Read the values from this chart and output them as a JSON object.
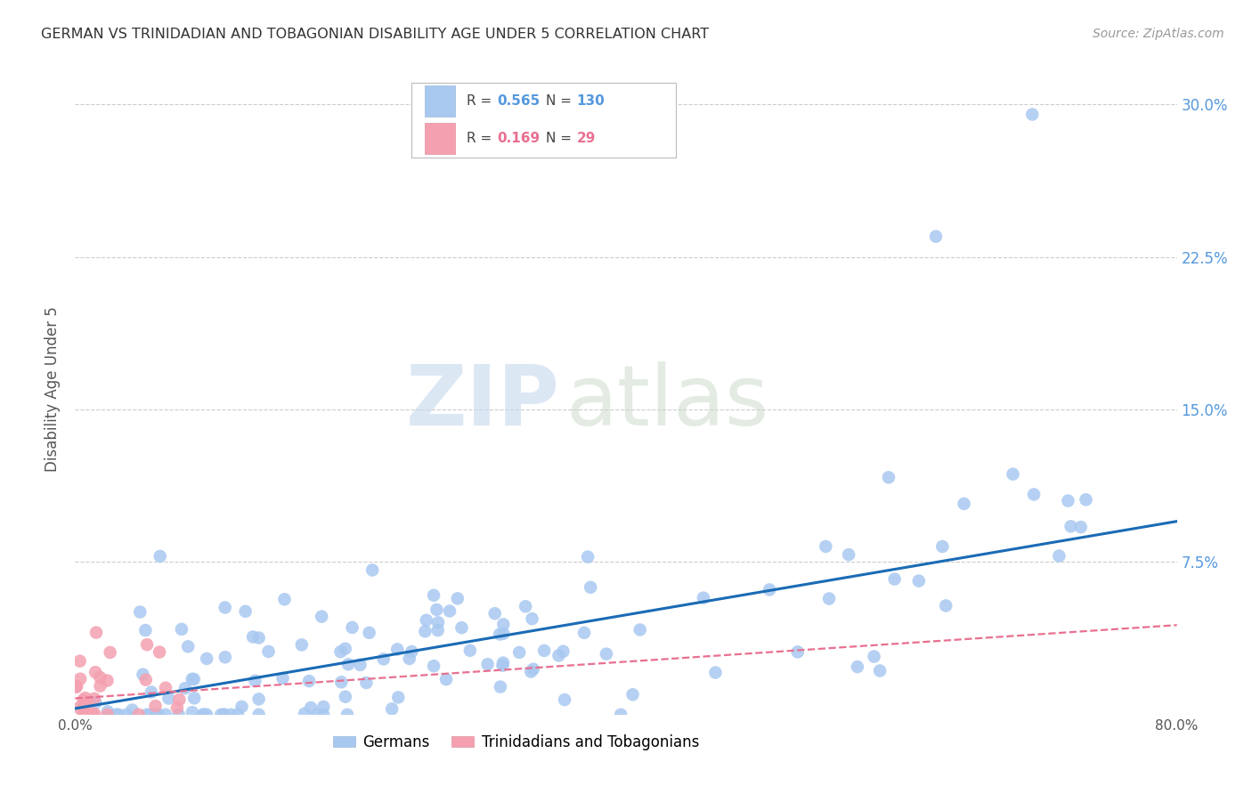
{
  "title": "GERMAN VS TRINIDADIAN AND TOBAGONIAN DISABILITY AGE UNDER 5 CORRELATION CHART",
  "source": "Source: ZipAtlas.com",
  "ylabel": "Disability Age Under 5",
  "xlim": [
    0.0,
    0.8
  ],
  "ylim": [
    0.0,
    0.32
  ],
  "xticks": [
    0.0,
    0.1,
    0.2,
    0.3,
    0.4,
    0.5,
    0.6,
    0.7,
    0.8
  ],
  "xticklabels": [
    "0.0%",
    "",
    "",
    "",
    "",
    "",
    "",
    "",
    "80.0%"
  ],
  "yticks": [
    0.0,
    0.075,
    0.15,
    0.225,
    0.3
  ],
  "yticklabels": [
    "",
    "7.5%",
    "15.0%",
    "22.5%",
    "30.0%"
  ],
  "german_color": "#a8c8f0",
  "trinidadian_color": "#f4a0b0",
  "german_line_color": "#1a6bb5",
  "trinidadian_line_color": "#e87090",
  "legend_blue_R": "0.565",
  "legend_blue_N": "130",
  "legend_pink_R": "0.169",
  "legend_pink_N": "29",
  "watermark_zip": "ZIP",
  "watermark_atlas": "atlas",
  "background_color": "#ffffff",
  "grid_color": "#cccccc",
  "title_color": "#333333",
  "axis_label_color": "#555555",
  "right_tick_color": "#5599dd",
  "german_seed": 42,
  "trinidadian_seed": 7,
  "german_slope": 0.115,
  "german_intercept": 0.003,
  "trinidadian_slope": 0.045,
  "trinidadian_intercept": 0.008
}
